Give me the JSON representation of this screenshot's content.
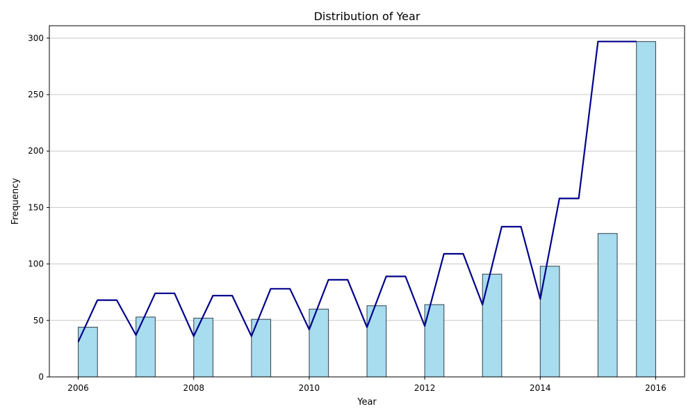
{
  "chart_data": {
    "type": "bar",
    "title": "Distribution of Year",
    "xlabel": "Year",
    "ylabel": "Frequency",
    "xlim": [
      2005.5,
      2016.5
    ],
    "ylim": [
      0,
      311
    ],
    "xticks": [
      "2006",
      "2008",
      "2010",
      "2012",
      "2014",
      "2016"
    ],
    "yticks": [
      "0",
      "50",
      "100",
      "150",
      "200",
      "250",
      "300"
    ],
    "grid": "y",
    "bar_width": 0.333,
    "colors": {
      "bar_fill": "#a8dcef",
      "bar_edge": "#2f3f4a",
      "line": "#00008b",
      "grid": "#c8c8c8"
    },
    "series": [
      {
        "kind": "bars",
        "x": [
          2006.167,
          2007.167,
          2008.167,
          2009.167,
          2010.167,
          2011.167,
          2012.167,
          2013.167,
          2014.167,
          2015.167,
          2015.833
        ],
        "values": [
          44,
          53,
          52,
          51,
          60,
          63,
          64,
          91,
          98,
          127,
          297
        ]
      },
      {
        "kind": "line",
        "x": [
          2006.0,
          2006.333,
          2006.667,
          2007.0,
          2007.333,
          2007.667,
          2008.0,
          2008.333,
          2008.667,
          2009.0,
          2009.333,
          2009.667,
          2010.0,
          2010.333,
          2010.667,
          2011.0,
          2011.333,
          2011.667,
          2012.0,
          2012.333,
          2012.667,
          2013.0,
          2013.333,
          2013.667,
          2014.0,
          2014.333,
          2014.667,
          2015.0,
          2015.333,
          2015.667
        ],
        "values": [
          31,
          68,
          68,
          37,
          74,
          74,
          36,
          72,
          72,
          36,
          78,
          78,
          42,
          86,
          86,
          44,
          89,
          89,
          45,
          109,
          109,
          64,
          133,
          133,
          69,
          158,
          158,
          297,
          297,
          297
        ]
      }
    ]
  }
}
